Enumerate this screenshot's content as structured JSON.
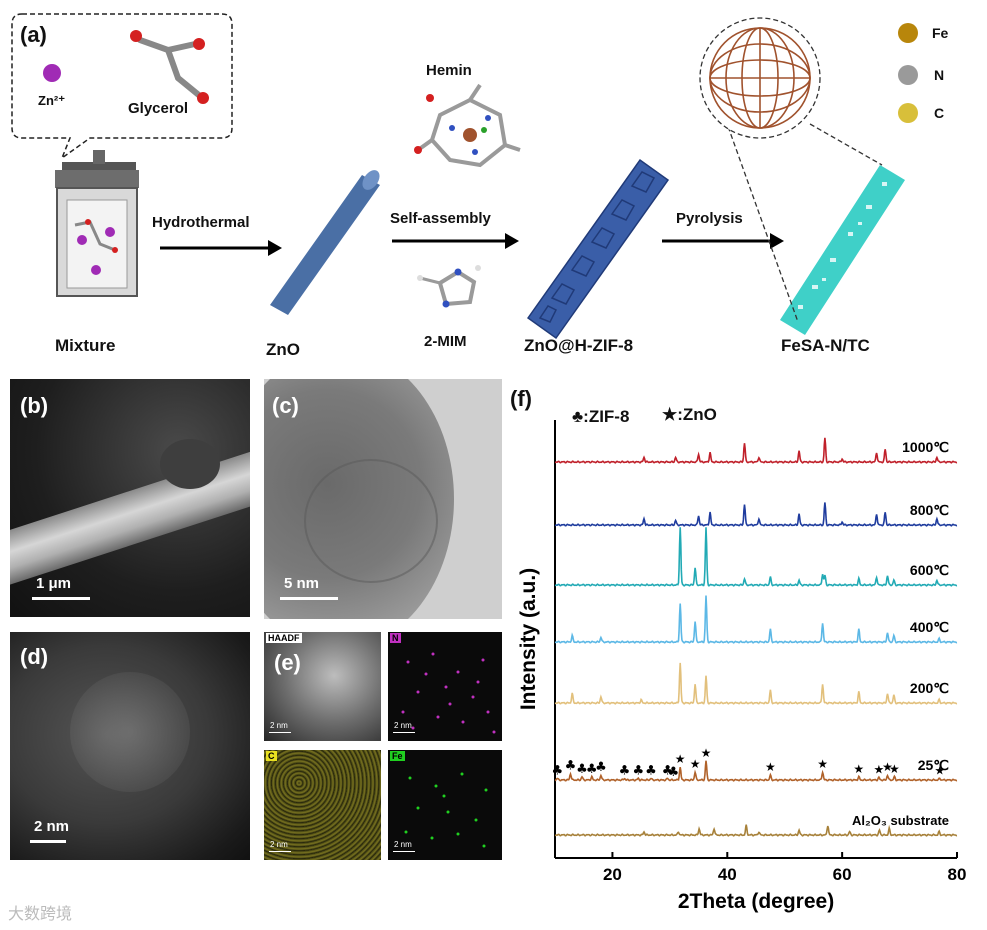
{
  "panel_a": {
    "letter": "(a)",
    "zn_label": "Zn²⁺",
    "glycerol_label": "Glycerol",
    "hemin_label": "Hemin",
    "mim_label": "2-MIM",
    "steps": [
      "Hydrothermal",
      "Self-assembly",
      "Pyrolysis"
    ],
    "stages": [
      "Mixture",
      "ZnO",
      "ZnO@H-ZIF-8",
      "FeSA-N/TC"
    ],
    "legend": [
      "Fe",
      "N",
      "C"
    ],
    "colors": {
      "fe": "#b8860b",
      "n": "#9a9a9a",
      "c": "#d8bf3a",
      "zno": "#4a6fa5",
      "zif": "#3a5ea8",
      "tube": "#3fd0c8"
    }
  },
  "panel_b": {
    "letter": "(b)",
    "scale": "1 μm"
  },
  "panel_c": {
    "letter": "(c)",
    "scale": "5 nm"
  },
  "panel_d": {
    "letter": "(d)",
    "scale": "2 nm"
  },
  "panel_e": {
    "letter": "(e)",
    "maps": [
      "HAADF",
      "N",
      "C",
      "Fe"
    ],
    "scale": "2 nm"
  },
  "panel_f": {
    "letter": "(f)",
    "legend_zif": "♣:ZIF-8",
    "legend_zno": "★:ZnO"
  },
  "watermark": "大数跨境",
  "chart_data": {
    "type": "line",
    "xlabel": "2Theta (degree)",
    "ylabel": "Intensity (a.u.)",
    "xlim": [
      10,
      80
    ],
    "xticks": [
      20,
      40,
      60,
      80
    ],
    "series": [
      {
        "name": "1000℃",
        "color": "#c0202a",
        "baseline": 7,
        "peaks": [
          [
            25.5,
            0.3
          ],
          [
            31,
            0.3
          ],
          [
            35,
            0.5
          ],
          [
            37,
            0.6
          ],
          [
            43,
            1.2
          ],
          [
            45.5,
            0.3
          ],
          [
            52.5,
            0.7
          ],
          [
            57,
            1.5
          ],
          [
            60,
            0.2
          ],
          [
            66,
            0.6
          ],
          [
            67.5,
            0.8
          ],
          [
            76.5,
            0.3
          ]
        ]
      },
      {
        "name": "800℃",
        "color": "#1f3c9e",
        "baseline": 6,
        "peaks": [
          [
            25.5,
            0.4
          ],
          [
            31,
            0.3
          ],
          [
            35,
            0.6
          ],
          [
            37,
            0.8
          ],
          [
            43,
            1.3
          ],
          [
            45.5,
            0.4
          ],
          [
            52.5,
            0.7
          ],
          [
            57,
            1.4
          ],
          [
            60,
            0.2
          ],
          [
            66,
            0.7
          ],
          [
            67.5,
            0.8
          ],
          [
            76.5,
            0.4
          ]
        ]
      },
      {
        "name": "600℃",
        "color": "#22aab5",
        "baseline": 5,
        "peaks": [
          [
            31.8,
            3.6
          ],
          [
            34.4,
            1.1
          ],
          [
            36.3,
            3.6
          ],
          [
            43,
            0.4
          ],
          [
            47.5,
            0.5
          ],
          [
            52.5,
            0.3
          ],
          [
            56.6,
            0.7
          ],
          [
            57,
            0.6
          ],
          [
            62.9,
            0.4
          ],
          [
            66,
            0.5
          ],
          [
            67.9,
            0.6
          ],
          [
            69,
            0.3
          ],
          [
            76.5,
            0.3
          ]
        ]
      },
      {
        "name": "400℃",
        "color": "#5cb8e6",
        "baseline": 4,
        "peaks": [
          [
            13,
            0.4
          ],
          [
            18,
            0.3
          ],
          [
            31.8,
            2.4
          ],
          [
            34.4,
            1.3
          ],
          [
            36.3,
            2.9
          ],
          [
            47.5,
            0.8
          ],
          [
            56.6,
            1.2
          ],
          [
            62.9,
            0.8
          ],
          [
            67.9,
            0.6
          ],
          [
            69,
            0.4
          ],
          [
            76.9,
            0.2
          ]
        ]
      },
      {
        "name": "200℃",
        "color": "#e2c07c",
        "baseline": 3,
        "peaks": [
          [
            13,
            0.6
          ],
          [
            18,
            0.4
          ],
          [
            25,
            0.2
          ],
          [
            31.8,
            2.5
          ],
          [
            34.4,
            1.2
          ],
          [
            36.3,
            1.7
          ],
          [
            47.5,
            0.8
          ],
          [
            56.6,
            1.2
          ],
          [
            62.9,
            0.7
          ],
          [
            67.9,
            0.6
          ],
          [
            69,
            0.5
          ],
          [
            76.9,
            0.2
          ]
        ]
      },
      {
        "name": "25℃",
        "color": "#b0622a",
        "baseline": 2,
        "peaks": [
          [
            10.4,
            0.1
          ],
          [
            12.7,
            0.4
          ],
          [
            14.7,
            0.2
          ],
          [
            16.4,
            0.2
          ],
          [
            18,
            0.3
          ],
          [
            22.1,
            0.1
          ],
          [
            24.5,
            0.1
          ],
          [
            26.7,
            0.1
          ],
          [
            29.6,
            0.1
          ],
          [
            31.8,
            0.8
          ],
          [
            34.4,
            0.5
          ],
          [
            36.3,
            1.2
          ],
          [
            47.5,
            0.3
          ],
          [
            56.6,
            0.5
          ],
          [
            62.9,
            0.2
          ],
          [
            66.4,
            0.15
          ],
          [
            67.9,
            0.3
          ],
          [
            69.1,
            0.2
          ],
          [
            77,
            0.1
          ]
        ]
      },
      {
        "name": "Al₂O₃ substrate",
        "color": "#a7813a",
        "baseline": 1,
        "peaks": [
          [
            25.5,
            0.2
          ],
          [
            31.5,
            0.2
          ],
          [
            35.1,
            0.4
          ],
          [
            37.7,
            0.4
          ],
          [
            43.3,
            0.6
          ],
          [
            45.5,
            0.2
          ],
          [
            52.5,
            0.3
          ],
          [
            57.5,
            0.6
          ],
          [
            61.3,
            0.2
          ],
          [
            66.5,
            0.3
          ],
          [
            68.2,
            0.4
          ],
          [
            76.9,
            0.2
          ]
        ]
      }
    ],
    "zif_markers": [
      10.4,
      12.7,
      14.7,
      16.4,
      18.0,
      22.1,
      24.5,
      26.7,
      29.6,
      30.6
    ],
    "zno_markers": [
      31.8,
      34.4,
      36.3,
      47.5,
      56.6,
      62.9,
      66.4,
      67.9,
      69.1,
      77.0
    ]
  }
}
